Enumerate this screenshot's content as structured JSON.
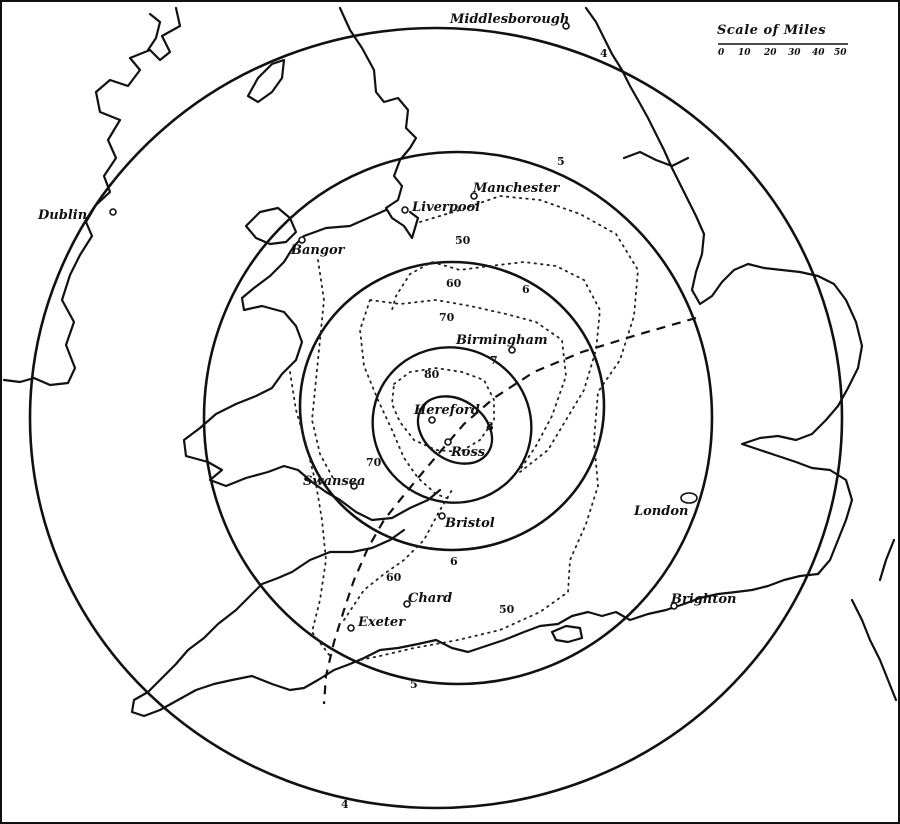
{
  "scale": {
    "title": "Scale of Miles",
    "ticks": [
      "0",
      "10",
      "20",
      "30",
      "40",
      "50"
    ]
  },
  "towns": {
    "middlesborough": "Middlesborough",
    "manchester": "Manchester",
    "liverpool": "Liverpool",
    "dublin": "Dublin",
    "bangor": "Bangor",
    "birmingham": "Birmingham",
    "hereford": "Hereford",
    "ross": "Ross",
    "swansea": "Swansea",
    "bristol": "Bristol",
    "london": "London",
    "chard": "Chard",
    "exeter": "Exeter",
    "brighton": "Brighton"
  },
  "isoseismal_labels": {
    "outer_north": "4",
    "outer_south": "4",
    "second_north": "5",
    "second_south": "5",
    "third_north": "6",
    "third_south": "6",
    "fourth": "7",
    "inner": "8"
  },
  "isoacoustic_labels": {
    "a": "50",
    "b": "60",
    "c": "70",
    "d": "80",
    "e": "70",
    "f": "60",
    "g": "50"
  }
}
